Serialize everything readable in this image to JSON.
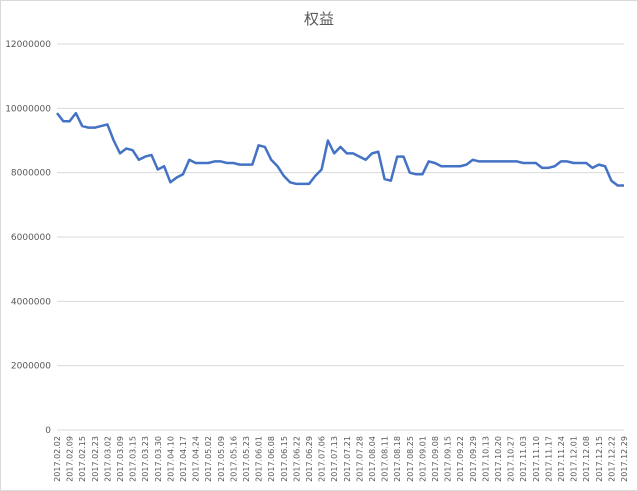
{
  "chart_data": {
    "type": "line",
    "title": "权益",
    "categories": [
      "2017.02.02",
      null,
      "2017.02.09",
      null,
      "2017.02.15",
      null,
      "2017.02.23",
      null,
      "2017.03.02",
      null,
      "2017.03.09",
      null,
      "2017.03.15",
      null,
      "2017.03.23",
      null,
      "2017.03.30",
      null,
      "2017.04.10",
      null,
      "2017.04.17",
      null,
      "2017.04.24",
      null,
      "2017.05.02",
      null,
      "2017.05.09",
      null,
      "2017.05.16",
      null,
      "2017.05.23",
      null,
      "2017.06.01",
      null,
      "2017.06.08",
      null,
      "2017.06.15",
      null,
      "2017.06.22",
      null,
      "2017.06.29",
      null,
      "2017.07.06",
      null,
      "2017.07.13",
      null,
      "2017.07.21",
      null,
      "2017.07.28",
      null,
      "2017.08.04",
      null,
      "2017.08.11",
      null,
      "2017.08.18",
      null,
      "2017.08.25",
      null,
      "2017.09.01",
      null,
      "2017.09.08",
      null,
      "2017.09.15",
      null,
      "2017.09.22",
      null,
      "2017.09.29",
      null,
      "2017.10.13",
      null,
      "2017.10.20",
      null,
      "2017.10.27",
      null,
      "2017.11.03",
      null,
      "2017.11.10",
      null,
      "2017.11.17",
      null,
      "2017.11.24",
      null,
      "2017.12.01",
      null,
      "2017.12.08",
      null,
      "2017.12.15",
      null,
      "2017.12.22",
      null,
      "2017.12.29"
    ],
    "series": [
      {
        "name": "权益",
        "color": "#4472c4",
        "values": [
          9850000,
          9600000,
          9600000,
          9850000,
          9450000,
          9400000,
          9400000,
          9450000,
          9500000,
          9000000,
          8600000,
          8750000,
          8700000,
          8400000,
          8500000,
          8550000,
          8100000,
          8200000,
          7700000,
          7850000,
          7950000,
          8400000,
          8300000,
          8300000,
          8300000,
          8350000,
          8350000,
          8300000,
          8300000,
          8250000,
          8250000,
          8250000,
          8850000,
          8800000,
          8400000,
          8200000,
          7900000,
          7700000,
          7650000,
          7650000,
          7650000,
          7900000,
          8100000,
          9000000,
          8600000,
          8800000,
          8600000,
          8600000,
          8500000,
          8400000,
          8600000,
          8650000,
          7800000,
          7750000,
          8500000,
          8500000,
          8000000,
          7950000,
          7950000,
          8350000,
          8300000,
          8200000,
          8200000,
          8200000,
          8200000,
          8250000,
          8400000,
          8350000,
          8350000,
          8350000,
          8350000,
          8350000,
          8350000,
          8350000,
          8300000,
          8300000,
          8300000,
          8150000,
          8150000,
          8200000,
          8350000,
          8350000,
          8300000,
          8300000,
          8300000,
          8150000,
          8250000,
          8200000,
          7750000,
          7600000,
          7600000
        ]
      }
    ],
    "ylim": [
      0,
      12000000
    ],
    "yticks": [
      0,
      2000000,
      4000000,
      6000000,
      8000000,
      10000000,
      12000000
    ],
    "grid": true
  }
}
